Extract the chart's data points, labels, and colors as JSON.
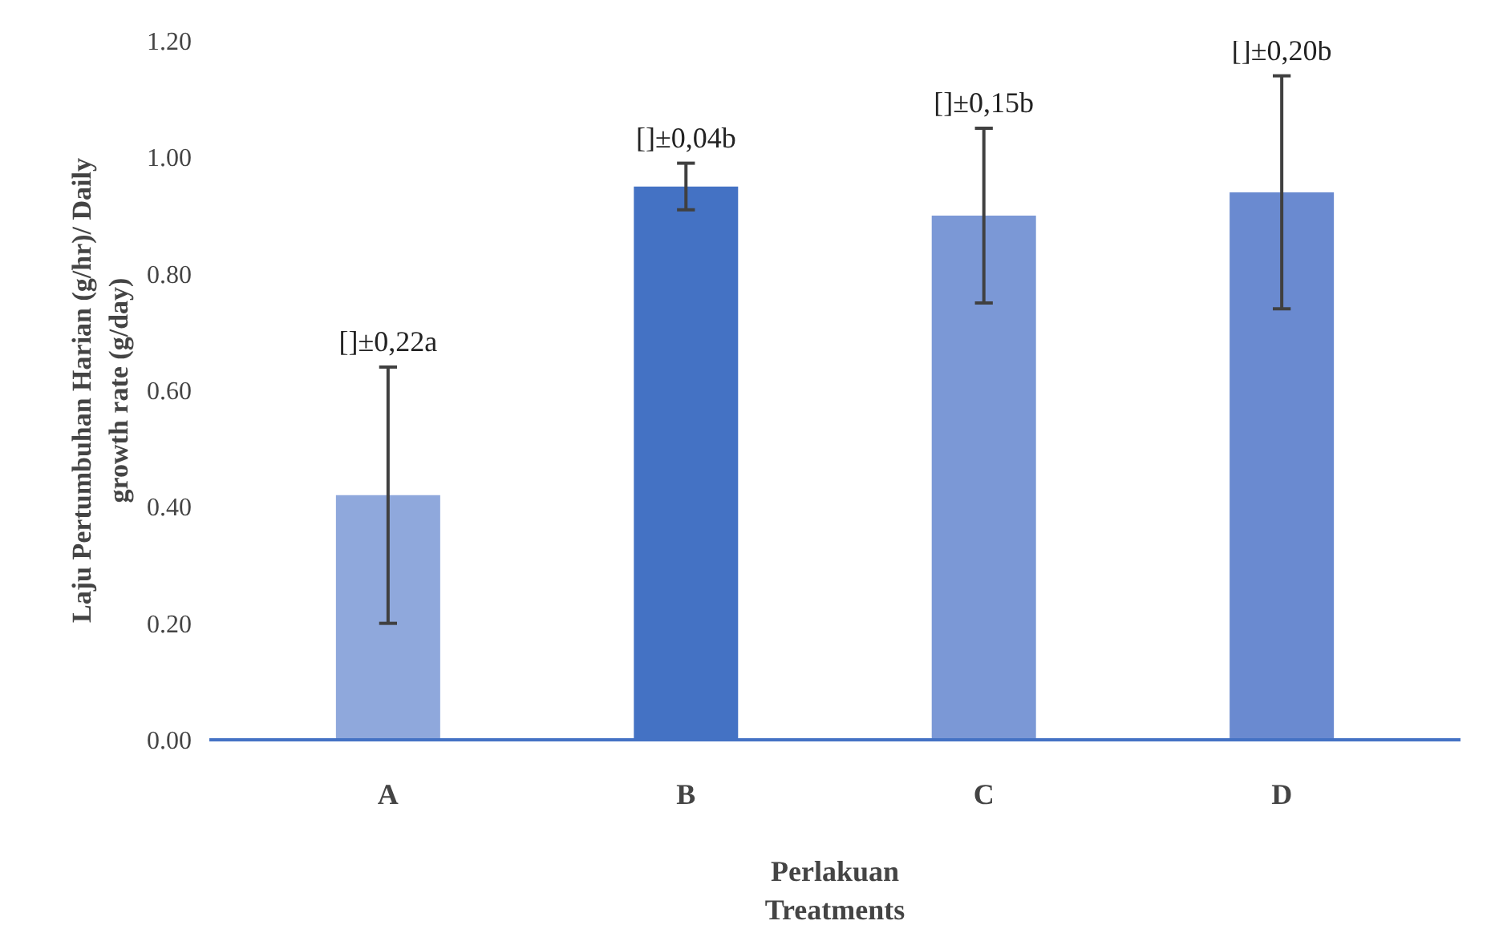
{
  "chart_data": {
    "type": "bar",
    "xlabel": "Perlakuan\nTreatments",
    "ylabel": "Laju Pertumbuhan Harian (g/hr)/ Daily\ngrowth rate (g/day)",
    "categories": [
      "A",
      "B",
      "C",
      "D"
    ],
    "values": [
      0.42,
      0.95,
      0.9,
      0.94
    ],
    "colors": [
      "#8fa8dc",
      "#4472c4",
      "#7b98d6",
      "#6a8ad0"
    ],
    "errors": [
      0.22,
      0.04,
      0.15,
      0.2
    ],
    "annotations": [
      {
        "text": "[]±0,22a",
        "x": "A",
        "y": 0.64
      },
      {
        "text": "[]±0,04b",
        "x": "B",
        "y": 0.99
      },
      {
        "text": "[]±0,15b",
        "x": "C",
        "y": 1.05
      },
      {
        "text": "[]±0,20b",
        "x": "D",
        "y": 1.14
      }
    ],
    "ylim": [
      0,
      1.2
    ],
    "yticks": [
      {
        "value": 0,
        "label": "0.00"
      },
      {
        "value": 0.2,
        "label": "0.20"
      },
      {
        "value": 0.4,
        "label": "0.40"
      },
      {
        "value": 0.6,
        "label": "0.60"
      },
      {
        "value": 0.8,
        "label": "0.80"
      },
      {
        "value": 1.0,
        "label": "1.00"
      },
      {
        "value": 1.2,
        "label": "1.20"
      }
    ],
    "grid": false
  }
}
